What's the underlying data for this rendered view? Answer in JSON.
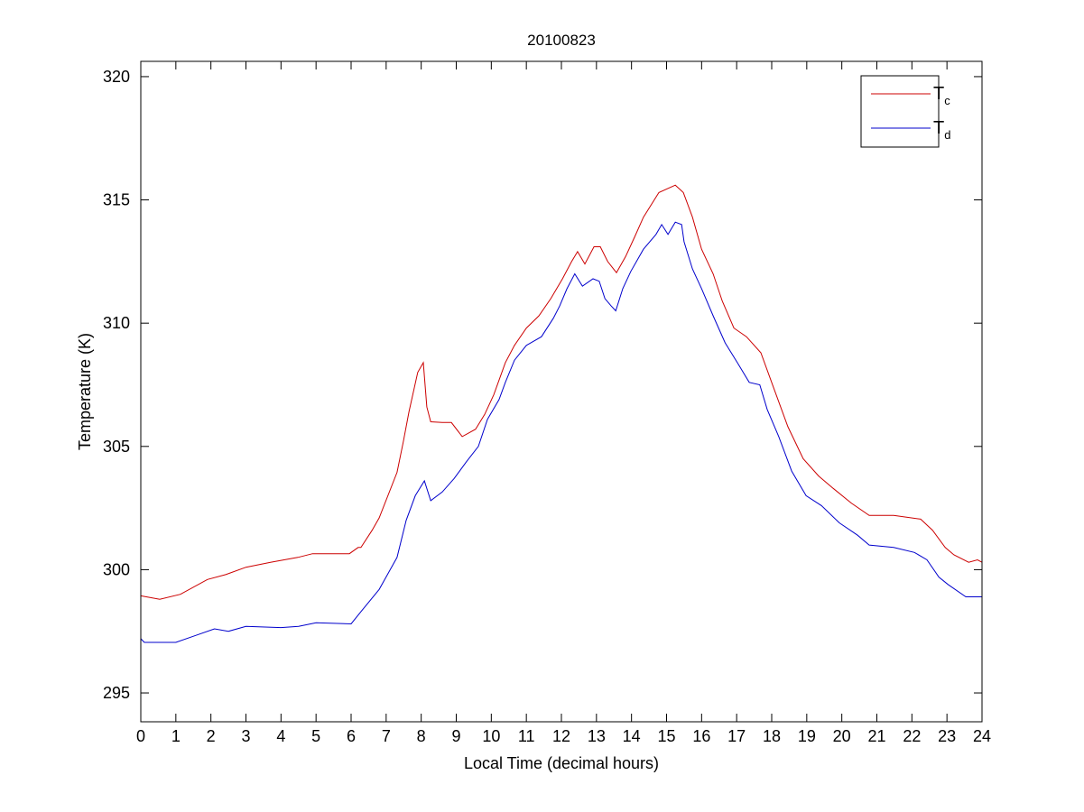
{
  "chart_data": {
    "type": "line",
    "title": "20100823",
    "xlabel": "Local Time (decimal hours)",
    "ylabel": "Temperature (K)",
    "xlim": [
      0,
      24
    ],
    "ylim": [
      293.83,
      320.62
    ],
    "xticks": [
      0,
      1,
      2,
      3,
      4,
      5,
      6,
      7,
      8,
      9,
      10,
      11,
      12,
      13,
      14,
      15,
      16,
      17,
      18,
      19,
      20,
      21,
      22,
      23,
      24
    ],
    "yticks": [
      295,
      300,
      305,
      310,
      315,
      320
    ],
    "grid": false,
    "legend_position": "top-right",
    "series": [
      {
        "name": "T",
        "subscript": "c",
        "color": "#cc0000",
        "x": [
          0,
          0.54,
          1.13,
          1.9,
          2.42,
          3.0,
          3.7,
          4.48,
          4.9,
          5.77,
          5.95,
          6.2,
          6.28,
          6.6,
          6.8,
          7.31,
          7.49,
          7.65,
          7.9,
          8.06,
          8.16,
          8.27,
          8.6,
          8.86,
          9.17,
          9.55,
          9.81,
          10.07,
          10.4,
          10.66,
          11.0,
          11.36,
          11.7,
          12.03,
          12.29,
          12.46,
          12.67,
          12.93,
          13.11,
          13.32,
          13.57,
          13.83,
          14.09,
          14.34,
          14.78,
          15.25,
          15.48,
          15.74,
          16.0,
          16.33,
          16.59,
          16.92,
          17.28,
          17.69,
          18.05,
          18.46,
          18.9,
          19.34,
          19.75,
          20.27,
          20.78,
          21.48,
          22.25,
          22.59,
          22.95,
          23.2,
          23.62,
          23.87,
          24
        ],
        "y": [
          298.94,
          298.8,
          299.0,
          299.6,
          299.8,
          300.1,
          300.3,
          300.5,
          300.65,
          300.65,
          300.65,
          300.9,
          300.9,
          301.6,
          302.1,
          303.95,
          305.2,
          306.4,
          308.0,
          308.4,
          306.6,
          306.0,
          305.97,
          305.97,
          305.4,
          305.7,
          306.3,
          307.1,
          308.4,
          309.1,
          309.8,
          310.3,
          311.0,
          311.8,
          312.5,
          312.9,
          312.4,
          313.1,
          313.1,
          312.5,
          312.05,
          312.7,
          313.5,
          314.3,
          315.3,
          315.6,
          315.3,
          314.3,
          313.0,
          312.0,
          310.9,
          309.8,
          309.45,
          308.8,
          307.4,
          305.8,
          304.5,
          303.8,
          303.3,
          302.7,
          302.2,
          302.2,
          302.05,
          301.6,
          300.9,
          300.6,
          300.3,
          300.4,
          300.3
        ]
      },
      {
        "name": "T",
        "subscript": "d",
        "color": "#0000cc",
        "x": [
          0,
          0.1,
          1.0,
          1.5,
          2.1,
          2.5,
          3.0,
          4.0,
          4.5,
          5.0,
          6.0,
          6.28,
          6.8,
          7.31,
          7.57,
          7.83,
          8.09,
          8.27,
          8.6,
          8.94,
          9.3,
          9.63,
          9.89,
          10.22,
          10.4,
          10.66,
          11.0,
          11.43,
          11.77,
          11.95,
          12.16,
          12.38,
          12.6,
          12.9,
          13.08,
          13.24,
          13.42,
          13.55,
          13.75,
          13.98,
          14.34,
          14.7,
          14.86,
          15.04,
          15.25,
          15.43,
          15.5,
          15.74,
          16.0,
          16.33,
          16.67,
          17.02,
          17.36,
          17.66,
          17.87,
          18.2,
          18.57,
          18.98,
          19.42,
          19.93,
          20.45,
          20.78,
          21.48,
          22.07,
          22.43,
          22.77,
          23.03,
          23.54,
          24
        ],
        "y": [
          297.2,
          297.05,
          297.05,
          297.3,
          297.6,
          297.5,
          297.7,
          297.65,
          297.7,
          297.85,
          297.8,
          298.3,
          299.2,
          300.5,
          302.0,
          303.0,
          303.6,
          302.8,
          303.15,
          303.7,
          304.4,
          305.0,
          306.1,
          306.9,
          307.6,
          308.5,
          309.1,
          309.45,
          310.2,
          310.7,
          311.4,
          312.0,
          311.5,
          311.8,
          311.7,
          311.0,
          310.7,
          310.5,
          311.4,
          312.1,
          313.0,
          313.6,
          314.0,
          313.6,
          314.1,
          314.0,
          313.3,
          312.2,
          311.4,
          310.3,
          309.2,
          308.4,
          307.6,
          307.5,
          306.5,
          305.4,
          304.0,
          303.0,
          302.6,
          301.9,
          301.4,
          301.0,
          300.9,
          300.7,
          300.4,
          299.7,
          299.4,
          298.9,
          298.9
        ]
      }
    ]
  }
}
